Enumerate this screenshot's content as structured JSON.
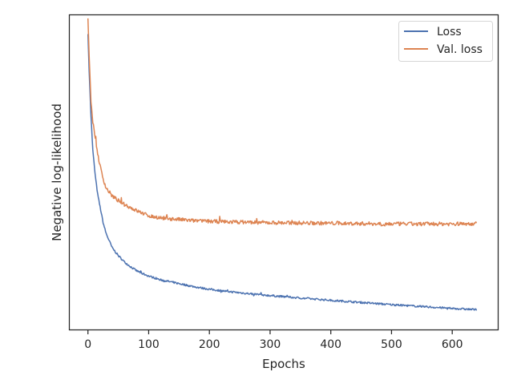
{
  "chart_data": {
    "type": "line",
    "xlabel": "Epochs",
    "ylabel": "Negative log-likelihood",
    "xlim": [
      -30,
      675
    ],
    "ylim": [
      0,
      1
    ],
    "x_ticks": [
      0,
      100,
      200,
      300,
      400,
      500,
      600
    ],
    "x_tick_labels": [
      "0",
      "100",
      "200",
      "300",
      "400",
      "500",
      "600"
    ],
    "y_tick_labels": [],
    "grid": false,
    "legend_position": "top-right",
    "series": [
      {
        "name": "Loss",
        "color": "#4c72b0",
        "points": [
          [
            0,
            0.94
          ],
          [
            2,
            0.82
          ],
          [
            5,
            0.68
          ],
          [
            8,
            0.57
          ],
          [
            12,
            0.49
          ],
          [
            16,
            0.43
          ],
          [
            20,
            0.39
          ],
          [
            25,
            0.34
          ],
          [
            30,
            0.305
          ],
          [
            40,
            0.26
          ],
          [
            50,
            0.235
          ],
          [
            60,
            0.215
          ],
          [
            70,
            0.2
          ],
          [
            80,
            0.187
          ],
          [
            90,
            0.178
          ],
          [
            100,
            0.17
          ],
          [
            120,
            0.158
          ],
          [
            150,
            0.146
          ],
          [
            175,
            0.136
          ],
          [
            200,
            0.128
          ],
          [
            230,
            0.121
          ],
          [
            260,
            0.115
          ],
          [
            300,
            0.108
          ],
          [
            350,
            0.1
          ],
          [
            400,
            0.093
          ],
          [
            450,
            0.086
          ],
          [
            500,
            0.079
          ],
          [
            550,
            0.073
          ],
          [
            600,
            0.067
          ],
          [
            640,
            0.063
          ]
        ],
        "noise": 0.003
      },
      {
        "name": "Val. loss",
        "color": "#dd8452",
        "points": [
          [
            0,
            0.99
          ],
          [
            2,
            0.87
          ],
          [
            5,
            0.73
          ],
          [
            8,
            0.66
          ],
          [
            12,
            0.61
          ],
          [
            16,
            0.56
          ],
          [
            20,
            0.52
          ],
          [
            25,
            0.48
          ],
          [
            30,
            0.45
          ],
          [
            40,
            0.425
          ],
          [
            50,
            0.41
          ],
          [
            60,
            0.398
          ],
          [
            70,
            0.388
          ],
          [
            80,
            0.378
          ],
          [
            90,
            0.37
          ],
          [
            100,
            0.362
          ],
          [
            120,
            0.355
          ],
          [
            150,
            0.35
          ],
          [
            175,
            0.346
          ],
          [
            200,
            0.344
          ],
          [
            250,
            0.342
          ],
          [
            300,
            0.34
          ],
          [
            400,
            0.338
          ],
          [
            500,
            0.336
          ],
          [
            600,
            0.336
          ],
          [
            640,
            0.337
          ]
        ],
        "noise": 0.006
      }
    ]
  }
}
